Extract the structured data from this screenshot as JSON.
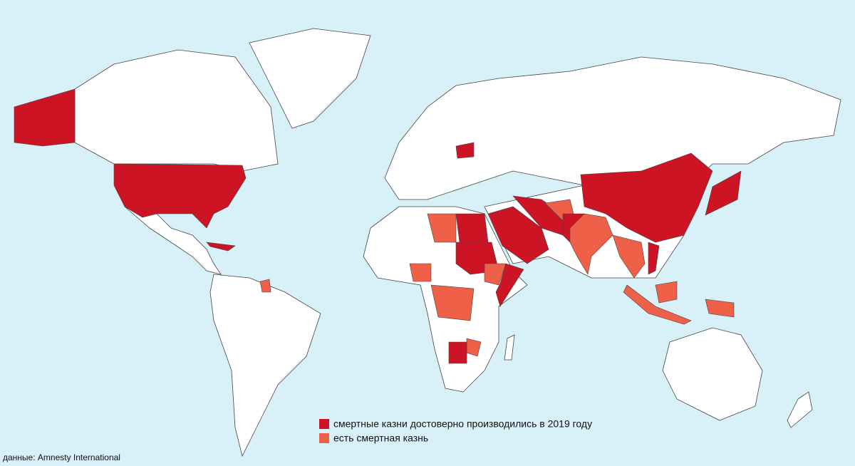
{
  "legend": [
    {
      "label": "смертные казни достоверно производились в 2019 году",
      "color": "#cc1424"
    },
    {
      "label": "есть смертная казнь",
      "color": "#ee6048"
    }
  ],
  "source": "данные: Amnesty International"
}
